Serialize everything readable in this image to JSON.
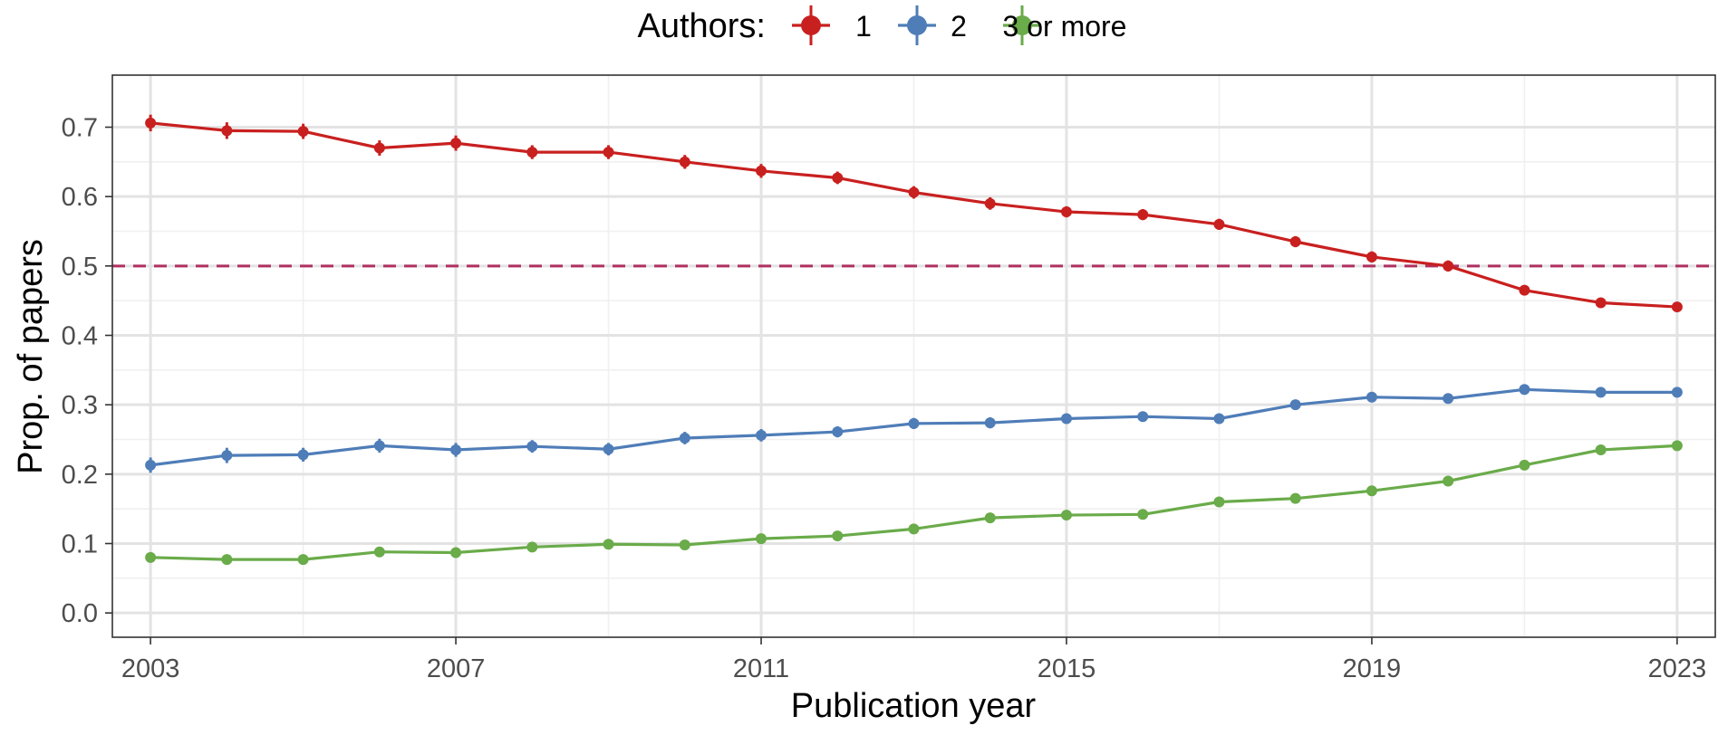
{
  "chart_data": {
    "type": "line",
    "xlabel": "Publication year",
    "ylabel": "Prop. of papers",
    "xlim": [
      2002.5,
      2023.5
    ],
    "ylim": [
      -0.035,
      0.775
    ],
    "x_ticks": [
      2003,
      2007,
      2011,
      2015,
      2019,
      2023
    ],
    "x_tick_labels": [
      "2003",
      "2007",
      "2011",
      "2015",
      "2019",
      "2023"
    ],
    "y_ticks": [
      0.0,
      0.1,
      0.2,
      0.3,
      0.4,
      0.5,
      0.6,
      0.7
    ],
    "y_tick_labels": [
      "0.0",
      "0.1",
      "0.2",
      "0.3",
      "0.4",
      "0.5",
      "0.6",
      "0.7"
    ],
    "grid": true,
    "legend": {
      "title": "Authors:",
      "position": "top-center"
    },
    "reference_line": {
      "y": 0.5,
      "style": "dashed",
      "color": "#b03060"
    },
    "x": [
      2003,
      2004,
      2005,
      2006,
      2007,
      2008,
      2009,
      2010,
      2011,
      2012,
      2013,
      2014,
      2015,
      2016,
      2017,
      2018,
      2019,
      2020,
      2021,
      2022,
      2023
    ],
    "series": [
      {
        "name": "1",
        "color": "#c8201f",
        "values": [
          0.706,
          0.695,
          0.694,
          0.67,
          0.677,
          0.664,
          0.664,
          0.65,
          0.637,
          0.627,
          0.606,
          0.59,
          0.578,
          0.574,
          0.56,
          0.535,
          0.513,
          0.5,
          0.465,
          0.447,
          0.441
        ],
        "error": [
          0.012,
          0.012,
          0.011,
          0.011,
          0.011,
          0.01,
          0.01,
          0.01,
          0.01,
          0.009,
          0.009,
          0.009,
          0.008,
          0.008,
          0.008,
          0.008,
          0.008,
          0.008,
          0.007,
          0.007,
          0.007
        ]
      },
      {
        "name": "2",
        "color": "#4f7db8",
        "values": [
          0.213,
          0.227,
          0.228,
          0.241,
          0.235,
          0.24,
          0.236,
          0.252,
          0.256,
          0.261,
          0.273,
          0.274,
          0.28,
          0.283,
          0.28,
          0.3,
          0.311,
          0.309,
          0.322,
          0.318,
          0.318
        ],
        "error": [
          0.011,
          0.011,
          0.01,
          0.01,
          0.01,
          0.009,
          0.009,
          0.009,
          0.009,
          0.008,
          0.008,
          0.008,
          0.007,
          0.007,
          0.007,
          0.007,
          0.007,
          0.007,
          0.006,
          0.006,
          0.006
        ]
      },
      {
        "name": "3 or more",
        "color": "#6aab4a",
        "values": [
          0.08,
          0.077,
          0.077,
          0.088,
          0.087,
          0.095,
          0.099,
          0.098,
          0.107,
          0.111,
          0.121,
          0.137,
          0.141,
          0.142,
          0.16,
          0.165,
          0.176,
          0.19,
          0.213,
          0.235,
          0.241
        ],
        "error": [
          0.006,
          0.006,
          0.006,
          0.006,
          0.006,
          0.006,
          0.006,
          0.006,
          0.006,
          0.005,
          0.005,
          0.005,
          0.005,
          0.005,
          0.005,
          0.005,
          0.005,
          0.005,
          0.005,
          0.005,
          0.005
        ]
      }
    ]
  }
}
